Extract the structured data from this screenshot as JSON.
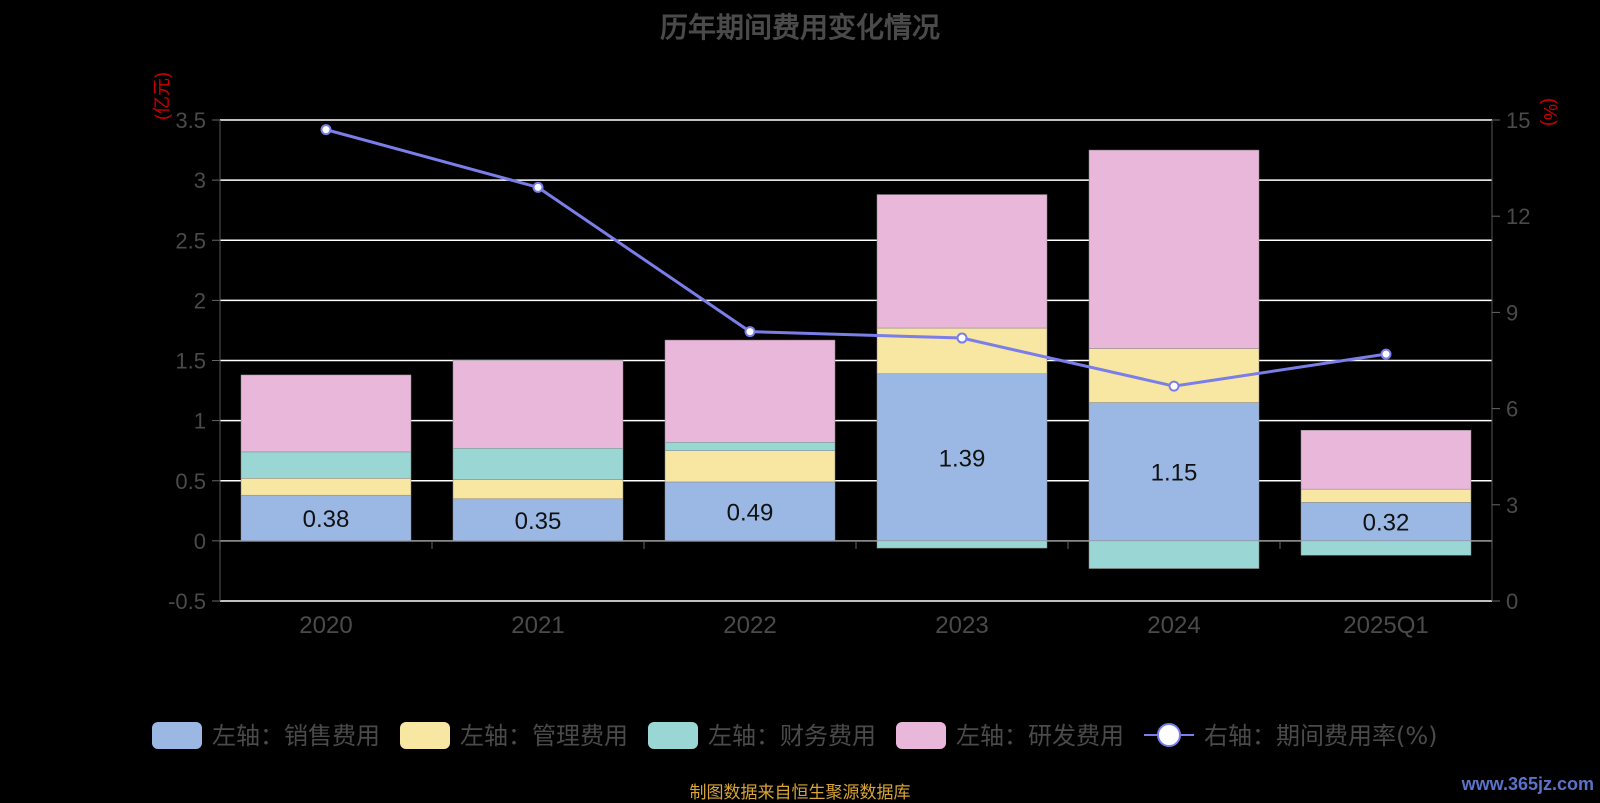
{
  "title": "历年期间费用变化情况",
  "footer": "制图数据来自恒生聚源数据库",
  "watermark": "www.365jz.com",
  "left_unit": "(亿元)",
  "right_unit": "(%)",
  "colors": {
    "sales": "#9ab8e3",
    "admin": "#f8e6a3",
    "finance": "#99d6d4",
    "rd": "#e8b7d9",
    "line": "#7a7ee8",
    "grid": "#ffffff",
    "axis_text": "#4a4a4a"
  },
  "chart_data": {
    "type": "bar",
    "stacked": true,
    "categories": [
      "2020",
      "2021",
      "2022",
      "2023",
      "2024",
      "2025Q1"
    ],
    "series": [
      {
        "name": "左轴：销售费用",
        "key": "sales",
        "axis": "left",
        "values": [
          0.38,
          0.35,
          0.49,
          1.39,
          1.15,
          0.32
        ]
      },
      {
        "name": "左轴：管理费用",
        "key": "admin",
        "axis": "left",
        "values": [
          0.14,
          0.16,
          0.26,
          0.38,
          0.45,
          0.11
        ]
      },
      {
        "name": "左轴：财务费用",
        "key": "finance",
        "axis": "left",
        "values": [
          0.22,
          0.26,
          0.07,
          -0.06,
          -0.23,
          -0.12
        ]
      },
      {
        "name": "左轴：研发费用",
        "key": "rd",
        "axis": "left",
        "values": [
          0.64,
          0.73,
          0.85,
          1.11,
          1.65,
          0.49
        ]
      },
      {
        "name": "右轴：期间费用率(%)",
        "key": "line",
        "axis": "right",
        "type": "line",
        "values": [
          14.7,
          12.9,
          8.4,
          8.2,
          6.7,
          7.7
        ]
      }
    ],
    "data_labels": [
      "0.38",
      "0.35",
      "0.49",
      "1.39",
      "1.15",
      "0.32"
    ],
    "y_left": {
      "min": -0.5,
      "max": 3.5,
      "ticks": [
        "-0.5",
        "0",
        "0.5",
        "1",
        "1.5",
        "2",
        "2.5",
        "3",
        "3.5"
      ]
    },
    "y_right": {
      "min": 0,
      "max": 15,
      "ticks": [
        "0",
        "3",
        "6",
        "9",
        "12",
        "15"
      ]
    },
    "grid": true,
    "legend_position": "bottom"
  }
}
